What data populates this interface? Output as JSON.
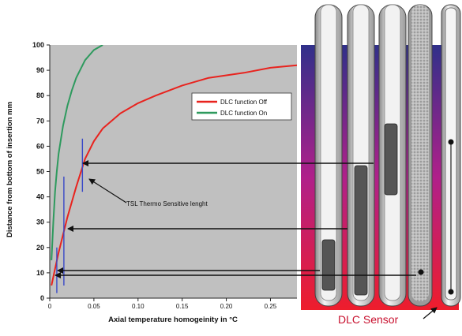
{
  "chart_data": {
    "type": "line",
    "ylabel": "Distance from bottom of insertion mm",
    "xlabel": "Axial temperature homogeinity in °C",
    "xlim": [
      0,
      0.28
    ],
    "ylim": [
      0,
      100
    ],
    "x_ticks": [
      "0",
      "0.05",
      "0.10",
      "0.15",
      "0.20",
      "0.25"
    ],
    "y_ticks": [
      "0",
      "10",
      "20",
      "30",
      "40",
      "50",
      "60",
      "70",
      "80",
      "90",
      "100"
    ],
    "grid": false,
    "legend_position": "right",
    "colors": {
      "plot_bg": "#c0c0c0",
      "off": "#e8231e",
      "on": "#2e9a5e",
      "bars": "#3848c8"
    },
    "series": [
      {
        "name": "DLC function Off",
        "color": "#e8231e",
        "x": [
          0.002,
          0.005,
          0.01,
          0.015,
          0.02,
          0.03,
          0.04,
          0.05,
          0.06,
          0.08,
          0.1,
          0.12,
          0.15,
          0.18,
          0.2,
          0.22,
          0.25,
          0.28
        ],
        "y": [
          5,
          10,
          18,
          25,
          32,
          44,
          55,
          62,
          67,
          73,
          77,
          80,
          84,
          87,
          88,
          89,
          91,
          92
        ]
      },
      {
        "name": "DLC function On",
        "color": "#2e9a5e",
        "x": [
          0.002,
          0.004,
          0.006,
          0.008,
          0.01,
          0.015,
          0.02,
          0.025,
          0.03,
          0.04,
          0.05,
          0.06
        ],
        "y": [
          15,
          30,
          42,
          50,
          57,
          68,
          76,
          82,
          87,
          94,
          98,
          100
        ]
      }
    ],
    "error_bars": [
      {
        "x": 0.008,
        "low": 2,
        "high": 20
      },
      {
        "x": 0.016,
        "low": 5,
        "high": 48
      },
      {
        "x": 0.037,
        "low": 42,
        "high": 63
      }
    ],
    "annotations": [
      "TSL Thermo Sensitive lenght"
    ]
  },
  "diagram": {
    "caption": "DLC Sensor",
    "colors": {
      "bath_top": "#30308a",
      "bath_mid": "#b0208a",
      "bath_bottom": "#ee1d2c",
      "arrow": "#111111"
    }
  }
}
